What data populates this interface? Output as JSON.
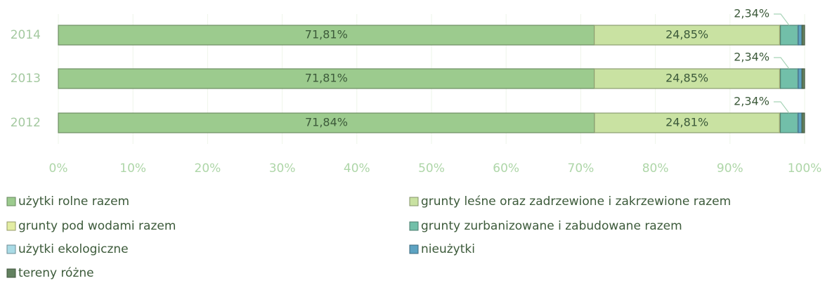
{
  "chart_data": {
    "type": "bar",
    "orientation": "horizontal",
    "stacked": true,
    "categories": [
      "2014",
      "2013",
      "2012"
    ],
    "series": [
      {
        "name": "użytki rolne razem",
        "color": "#9ccb8e",
        "values": [
          71.81,
          71.81,
          71.84
        ],
        "value_labels": [
          "71,81%",
          "71,81%",
          "71,84%"
        ]
      },
      {
        "name": "grunty leśne oraz zadrzewione i zakrzewione razem",
        "color": "#c9e2a2",
        "values": [
          24.85,
          24.85,
          24.81
        ],
        "value_labels": [
          "24,85%",
          "24,85%",
          "24,81%"
        ]
      },
      {
        "name": "grunty pod wodami razem",
        "color": "#e3eda3",
        "values": [
          0.1,
          0.1,
          0.1
        ]
      },
      {
        "name": "grunty zurbanizowane i zabudowane razem",
        "color": "#72bfa9",
        "values": [
          2.34,
          2.34,
          2.34
        ],
        "value_labels": [
          "2,34%",
          "2,34%",
          "2,34%"
        ]
      },
      {
        "name": "użytki ekologiczne",
        "color": "#a9dbe6",
        "values": [
          0.05,
          0.05,
          0.05
        ]
      },
      {
        "name": "nieużytki",
        "color": "#5da3c2",
        "values": [
          0.5,
          0.5,
          0.5
        ]
      },
      {
        "name": "tereny różne",
        "color": "#62815f",
        "values": [
          0.35,
          0.35,
          0.35
        ]
      }
    ],
    "xlim": [
      0,
      100
    ],
    "xticks": [
      {
        "value": 0,
        "label": "0%"
      },
      {
        "value": 10,
        "label": "10%"
      },
      {
        "value": 20,
        "label": "20%"
      },
      {
        "value": 30,
        "label": "30%"
      },
      {
        "value": 40,
        "label": "40%"
      },
      {
        "value": 50,
        "label": "50%"
      },
      {
        "value": 60,
        "label": "60%"
      },
      {
        "value": 70,
        "label": "70%"
      },
      {
        "value": 80,
        "label": "80%"
      },
      {
        "value": 90,
        "label": "90%"
      },
      {
        "value": 100,
        "label": "100%"
      }
    ],
    "grid": true,
    "legend": "bottom"
  }
}
